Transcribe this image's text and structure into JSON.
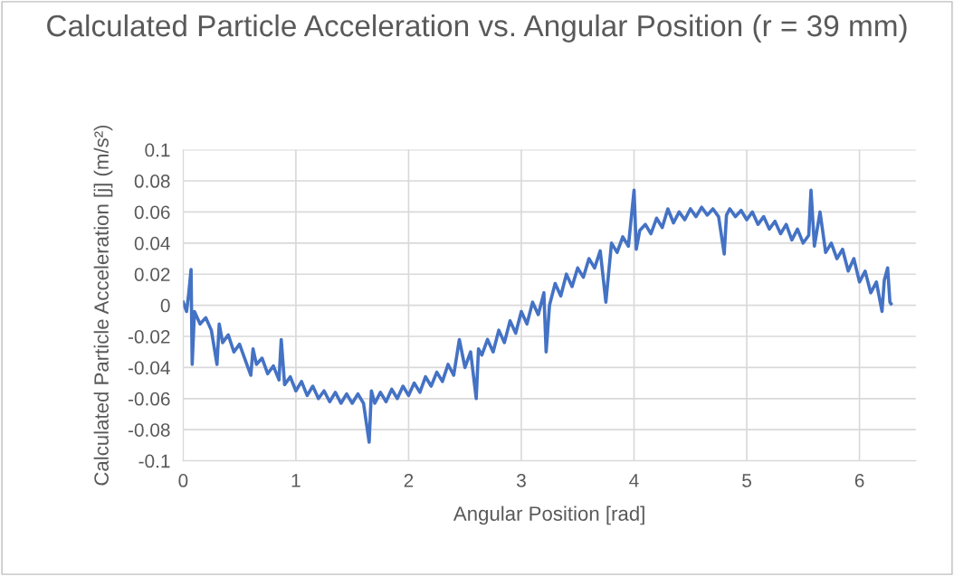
{
  "chart_data": {
    "type": "line",
    "title": "Calculated Particle Acceleration vs. Angular Position (r = 39 mm)",
    "xlabel": "Angular Position [rad]",
    "ylabel": "Calculated Particle Acceleration [j] (m/s²)",
    "xlim": [
      0,
      6.5
    ],
    "xticks": [
      0,
      1,
      2,
      3,
      4,
      5,
      6
    ],
    "ylim": [
      -0.1,
      0.1
    ],
    "yticks": [
      -0.1,
      -0.08,
      -0.06,
      -0.04,
      -0.02,
      0,
      0.02,
      0.04,
      0.06,
      0.08,
      0.1
    ],
    "grid": true,
    "marker": "none",
    "line_style": "solid",
    "series": [
      {
        "color": "#4472c4",
        "x": [
          0,
          0.03,
          0.05,
          0.07,
          0.08,
          0.1,
          0.15,
          0.2,
          0.25,
          0.3,
          0.32,
          0.35,
          0.4,
          0.45,
          0.5,
          0.55,
          0.6,
          0.62,
          0.65,
          0.7,
          0.75,
          0.8,
          0.85,
          0.87,
          0.9,
          0.95,
          1.0,
          1.05,
          1.1,
          1.15,
          1.2,
          1.25,
          1.3,
          1.35,
          1.4,
          1.45,
          1.5,
          1.55,
          1.6,
          1.65,
          1.67,
          1.7,
          1.75,
          1.8,
          1.85,
          1.9,
          1.95,
          2.0,
          2.05,
          2.1,
          2.15,
          2.2,
          2.25,
          2.3,
          2.35,
          2.4,
          2.45,
          2.5,
          2.55,
          2.6,
          2.62,
          2.65,
          2.7,
          2.75,
          2.8,
          2.85,
          2.9,
          2.95,
          3.0,
          3.05,
          3.1,
          3.15,
          3.2,
          3.22,
          3.25,
          3.3,
          3.35,
          3.4,
          3.45,
          3.5,
          3.55,
          3.6,
          3.65,
          3.7,
          3.75,
          3.8,
          3.85,
          3.9,
          3.95,
          4.0,
          4.02,
          4.05,
          4.1,
          4.15,
          4.2,
          4.25,
          4.3,
          4.35,
          4.4,
          4.45,
          4.5,
          4.55,
          4.6,
          4.65,
          4.7,
          4.75,
          4.8,
          4.82,
          4.85,
          4.9,
          4.95,
          5.0,
          5.05,
          5.1,
          5.15,
          5.2,
          5.25,
          5.3,
          5.35,
          5.4,
          5.45,
          5.5,
          5.55,
          5.57,
          5.6,
          5.65,
          5.7,
          5.75,
          5.8,
          5.85,
          5.9,
          5.95,
          6.0,
          6.05,
          6.1,
          6.15,
          6.2,
          6.22,
          6.25,
          6.27,
          6.28
        ],
        "values": [
          0.002,
          -0.004,
          0.008,
          0.023,
          -0.038,
          -0.004,
          -0.012,
          -0.008,
          -0.016,
          -0.038,
          -0.012,
          -0.024,
          -0.019,
          -0.03,
          -0.025,
          -0.035,
          -0.045,
          -0.028,
          -0.038,
          -0.034,
          -0.044,
          -0.039,
          -0.048,
          -0.022,
          -0.051,
          -0.046,
          -0.055,
          -0.049,
          -0.058,
          -0.052,
          -0.06,
          -0.055,
          -0.062,
          -0.056,
          -0.063,
          -0.057,
          -0.063,
          -0.057,
          -0.063,
          -0.088,
          -0.055,
          -0.063,
          -0.056,
          -0.062,
          -0.054,
          -0.06,
          -0.052,
          -0.058,
          -0.05,
          -0.056,
          -0.046,
          -0.052,
          -0.043,
          -0.049,
          -0.038,
          -0.045,
          -0.022,
          -0.04,
          -0.03,
          -0.06,
          -0.028,
          -0.032,
          -0.022,
          -0.03,
          -0.016,
          -0.024,
          -0.01,
          -0.018,
          -0.004,
          -0.012,
          0.002,
          -0.006,
          0.008,
          -0.03,
          0.0,
          0.014,
          0.006,
          0.02,
          0.012,
          0.024,
          0.018,
          0.03,
          0.024,
          0.035,
          0.002,
          0.04,
          0.034,
          0.044,
          0.038,
          0.074,
          0.036,
          0.048,
          0.052,
          0.046,
          0.056,
          0.05,
          0.062,
          0.053,
          0.06,
          0.055,
          0.062,
          0.057,
          0.063,
          0.058,
          0.062,
          0.057,
          0.033,
          0.058,
          0.062,
          0.057,
          0.061,
          0.055,
          0.06,
          0.052,
          0.057,
          0.049,
          0.054,
          0.046,
          0.052,
          0.042,
          0.049,
          0.04,
          0.045,
          0.074,
          0.038,
          0.06,
          0.034,
          0.04,
          0.03,
          0.036,
          0.022,
          0.03,
          0.015,
          0.022,
          0.008,
          0.015,
          -0.004,
          0.016,
          0.024,
          0.002,
          0.001
        ]
      }
    ]
  }
}
